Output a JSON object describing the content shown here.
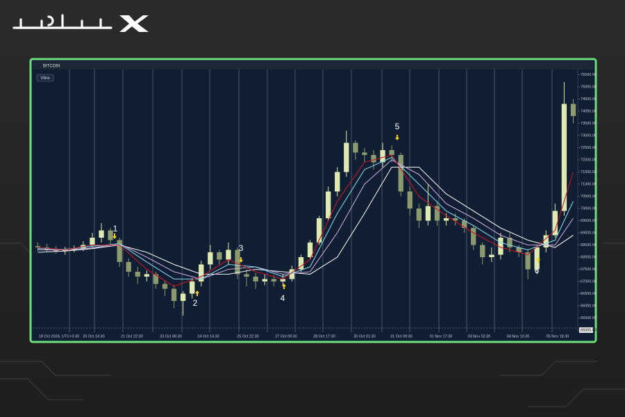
{
  "chart_data": {
    "type": "candlestick",
    "symbol": "BITCOIN",
    "tool_label": "Vline",
    "up_color": "#dfe9b0",
    "down_color": "#8c9a6e",
    "open": [
      68450,
      68400,
      68300,
      68250,
      68300,
      68350,
      68500,
      68800,
      69100,
      68700,
      67800,
      67400,
      67200,
      67300,
      66900,
      66700,
      66200,
      66500,
      67000,
      67700,
      68200,
      67900,
      68300,
      67300,
      67200,
      67000,
      67100,
      67000,
      67100,
      67500,
      68000,
      68600,
      69600,
      70700,
      71500,
      72700,
      72300,
      72200,
      71900,
      72400,
      72200,
      70700,
      70000,
      69500,
      70100,
      69500,
      69600,
      69500,
      69200,
      68500,
      68000,
      68100,
      68800,
      68400,
      68200,
      67500,
      68400,
      68900,
      69900,
      74300
    ],
    "high": [
      68600,
      68550,
      68450,
      68420,
      68480,
      68650,
      69000,
      69400,
      69200,
      68800,
      67950,
      67600,
      67450,
      67400,
      67050,
      66850,
      66600,
      67150,
      67850,
      68500,
      68300,
      68600,
      68400,
      67500,
      67350,
      67300,
      67250,
      67300,
      67650,
      68100,
      68700,
      69700,
      70900,
      71700,
      73200,
      72800,
      72500,
      72400,
      72700,
      72600,
      72300,
      70900,
      70200,
      71000,
      70300,
      69800,
      69800,
      69600,
      69300,
      68600,
      68400,
      69000,
      69000,
      68500,
      68300,
      68500,
      69100,
      70200,
      75200,
      74500
    ],
    "low": [
      68250,
      68200,
      68150,
      68100,
      68200,
      68250,
      68400,
      68600,
      68500,
      67600,
      67200,
      66900,
      67000,
      66700,
      66400,
      65900,
      65600,
      66300,
      66800,
      67500,
      67700,
      67700,
      67100,
      66800,
      66700,
      66850,
      66800,
      66850,
      67000,
      67400,
      67900,
      68500,
      69500,
      70500,
      71300,
      72000,
      71900,
      71600,
      71700,
      71900,
      70500,
      69700,
      69200,
      69300,
      69300,
      69300,
      69300,
      69000,
      68300,
      67700,
      67800,
      67900,
      68200,
      68000,
      67100,
      67300,
      68200,
      68800,
      69700,
      73500
    ],
    "close": [
      68400,
      68300,
      68250,
      68300,
      68350,
      68500,
      68800,
      69100,
      68700,
      67800,
      67400,
      67200,
      67300,
      66900,
      66700,
      66200,
      66500,
      67000,
      67700,
      68200,
      67900,
      68300,
      67300,
      67200,
      67000,
      67100,
      67000,
      67100,
      67500,
      68000,
      68600,
      69600,
      70700,
      71500,
      72700,
      72300,
      72200,
      71900,
      72400,
      72200,
      70700,
      70000,
      69500,
      70100,
      69500,
      69600,
      69500,
      69200,
      68500,
      68000,
      68100,
      68800,
      68400,
      68200,
      67500,
      68400,
      68900,
      69900,
      74300,
      73800
    ],
    "series": [
      {
        "color": "#f2f2f2",
        "x": [
          0,
          3,
          6,
          9,
          12,
          15,
          18,
          21,
          24,
          27,
          30,
          33,
          36,
          39,
          42,
          45,
          48,
          51,
          54,
          57,
          59
        ],
        "values": [
          68200,
          68250,
          68350,
          68500,
          68200,
          67700,
          67300,
          67300,
          67500,
          67400,
          67300,
          68000,
          69800,
          71700,
          71700,
          70600,
          69900,
          69200,
          68700,
          68400,
          68900
        ]
      },
      {
        "color": "#c9a6d8",
        "x": [
          0,
          3,
          6,
          9,
          12,
          15,
          18,
          21,
          24,
          27,
          30,
          33,
          36,
          39,
          42,
          45,
          48,
          51,
          54,
          57,
          59
        ],
        "values": [
          68300,
          68300,
          68380,
          68550,
          68000,
          67400,
          67100,
          67500,
          67600,
          67300,
          67400,
          69000,
          71000,
          72000,
          71400,
          70200,
          69600,
          68900,
          68500,
          68500,
          69600
        ]
      },
      {
        "color": "#7fd3e6",
        "x": [
          0,
          3,
          6,
          9,
          12,
          15,
          18,
          21,
          24,
          27,
          30,
          33,
          36,
          39,
          42,
          45,
          48,
          51,
          54,
          57,
          59
        ],
        "values": [
          68350,
          68320,
          68450,
          68550,
          67800,
          67100,
          67100,
          67700,
          67600,
          67200,
          67600,
          69800,
          71600,
          72100,
          71000,
          69900,
          69300,
          68600,
          68300,
          68700,
          70300
        ]
      },
      {
        "color": "#c0182a",
        "x": [
          0,
          3,
          6,
          9,
          12,
          15,
          18,
          21,
          24,
          27,
          30,
          33,
          36,
          39,
          42,
          45,
          48,
          51,
          54,
          57,
          59
        ],
        "values": [
          68400,
          68300,
          68500,
          68500,
          67500,
          66800,
          67200,
          67900,
          67400,
          67100,
          67900,
          70300,
          71900,
          72200,
          70500,
          69700,
          69000,
          68400,
          68100,
          69100,
          71500
        ]
      }
    ],
    "ylim": [
      64914,
      75714
    ],
    "yticks": [
      {
        "value": 65000,
        "label": "65000.00"
      },
      {
        "value": 65500,
        "label": "65500.00"
      },
      {
        "value": 66000,
        "label": "66000.00"
      },
      {
        "value": 66500,
        "label": "66500.00"
      },
      {
        "value": 67000,
        "label": "67000.00"
      },
      {
        "value": 67500,
        "label": "67500.00"
      },
      {
        "value": 68000,
        "label": "68000.00"
      },
      {
        "value": 68500,
        "label": "68500.00"
      },
      {
        "value": 69000,
        "label": "69000.00"
      },
      {
        "value": 69500,
        "label": "69500.00"
      },
      {
        "value": 70000,
        "label": "70000.00"
      },
      {
        "value": 70500,
        "label": "70500.00"
      },
      {
        "value": 71000,
        "label": "71000.00"
      },
      {
        "value": 71500,
        "label": "71500.00"
      },
      {
        "value": 72000,
        "label": "72000.00"
      },
      {
        "value": 72500,
        "label": "72500.00"
      },
      {
        "value": 73000,
        "label": "73000.00"
      },
      {
        "value": 73500,
        "label": "73500.00"
      },
      {
        "value": 74000,
        "label": "74000.00"
      },
      {
        "value": 74500,
        "label": "74500.00"
      },
      {
        "value": 75000,
        "label": "75000.00"
      },
      {
        "value": 75500,
        "label": "75500.00"
      }
    ],
    "x_labels": [
      "18 Oct 2024, UTC+3:30",
      "20 Oct 14:30",
      "21 Oct 22:30",
      "23 Oct 06:30",
      "24 Oct 14:30",
      "25 Oct 22:30",
      "27 Oct 09:30",
      "28 Oct 17:30",
      "30 Oct 01:30",
      "31 Oct 09:30",
      "01 Nov 17:30",
      "03 Nov 02:30",
      "04 Nov 10:30",
      "05 Nov 18:30"
    ],
    "annotations": [
      "1",
      "2",
      "3",
      "4",
      "5",
      "6"
    ]
  }
}
